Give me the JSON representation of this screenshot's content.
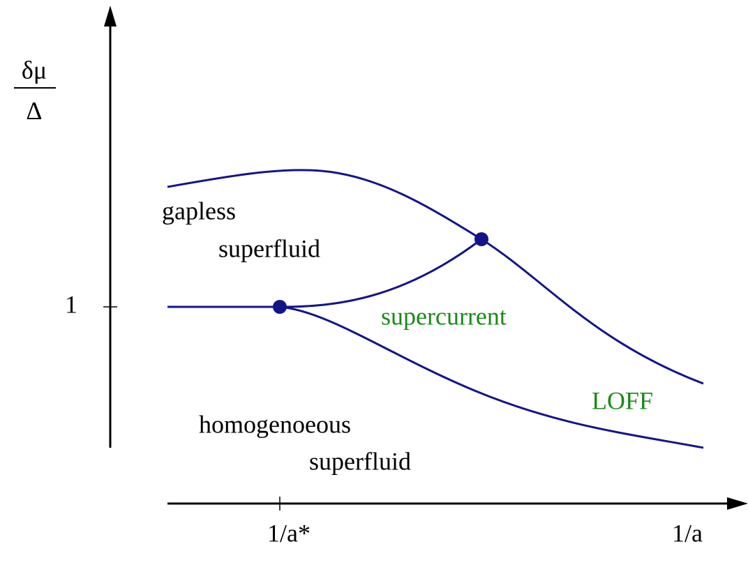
{
  "axes": {
    "y_label_numerator": "δμ",
    "y_label_denominator": "Δ",
    "y_tick": "1",
    "x_tick": "1/a*",
    "x_label": "1/a"
  },
  "regions": [
    {
      "label": "gapless"
    },
    {
      "label": "superfluid"
    },
    {
      "label": "supercurrent"
    },
    {
      "label": "LOFF"
    },
    {
      "label": "homogenoeous"
    },
    {
      "label": "superfluid"
    }
  ]
}
